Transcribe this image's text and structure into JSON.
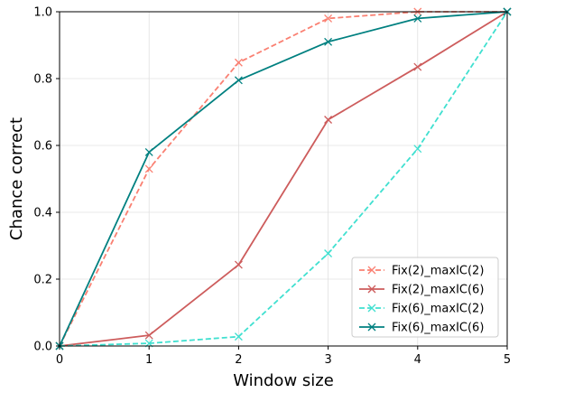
{
  "chart_data": {
    "type": "line",
    "title": "",
    "xlabel": "Window size",
    "ylabel": "Chance correct",
    "xlim": [
      0,
      5
    ],
    "ylim": [
      0,
      1.0
    ],
    "xticks": [
      0,
      1,
      2,
      3,
      4,
      5
    ],
    "yticks": [
      0.0,
      0.2,
      0.4,
      0.6,
      0.8,
      1.0
    ],
    "xtick_labels": [
      "0",
      "1",
      "2",
      "3",
      "4",
      "5"
    ],
    "ytick_labels": [
      "0.0",
      "0.2",
      "0.4",
      "0.6",
      "0.8",
      "1.0"
    ],
    "grid": true,
    "legend_position": "bottom-right",
    "x": [
      0,
      1,
      2,
      3,
      4,
      5
    ],
    "series": [
      {
        "name": "Fix(2)_maxIC(2)",
        "color": "#FA8072",
        "linestyle": "dashed",
        "marker": "x",
        "values": [
          0.0,
          0.53,
          0.848,
          0.98,
          1.0,
          1.0
        ]
      },
      {
        "name": "Fix(2)_maxIC(6)",
        "color": "#CD5C5C",
        "linestyle": "solid",
        "marker": "x",
        "values": [
          0.0,
          0.032,
          0.243,
          0.677,
          0.835,
          1.0
        ]
      },
      {
        "name": "Fix(6)_maxIC(2)",
        "color": "#40E0D0",
        "linestyle": "dashed",
        "marker": "x",
        "values": [
          0.0,
          0.008,
          0.028,
          0.277,
          0.59,
          1.0
        ]
      },
      {
        "name": "Fix(6)_maxIC(6)",
        "color": "#008080",
        "linestyle": "solid",
        "marker": "x",
        "values": [
          0.0,
          0.58,
          0.795,
          0.91,
          0.98,
          1.0
        ]
      }
    ]
  }
}
